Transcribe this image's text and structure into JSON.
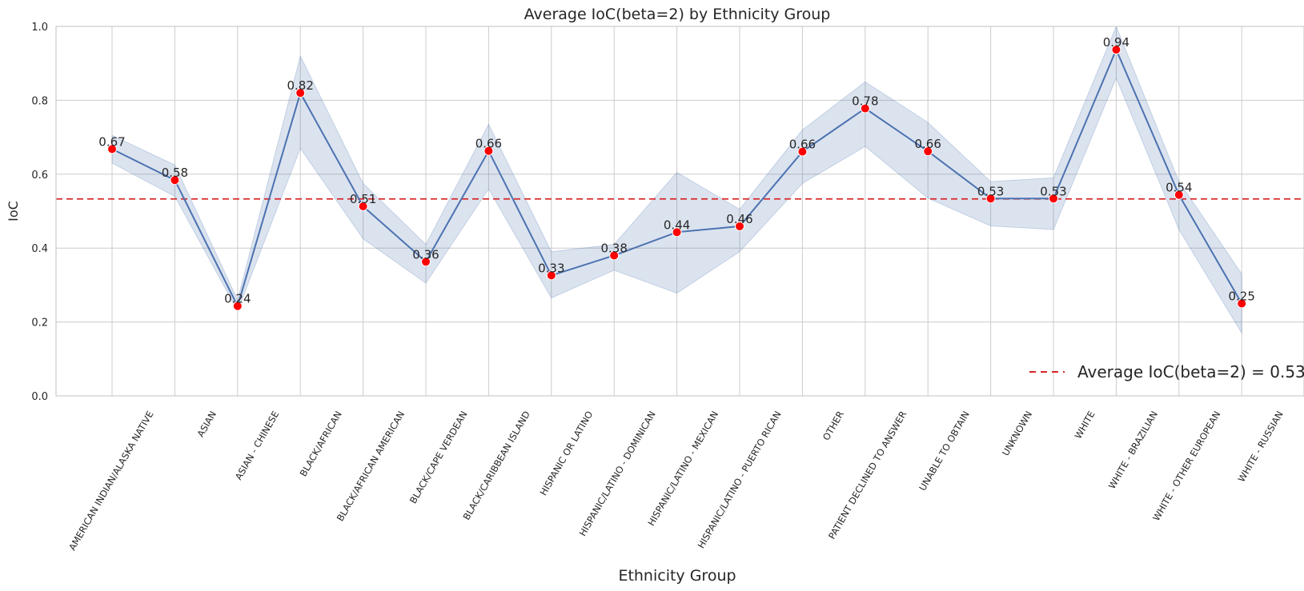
{
  "chart_data": {
    "type": "line",
    "title": "Average IoC(beta=2) by Ethnicity Group",
    "xlabel": "Ethnicity Group",
    "ylabel": "IoC",
    "ylim": [
      0,
      1
    ],
    "yticks": [
      0.0,
      0.2,
      0.4,
      0.6,
      0.8,
      1.0
    ],
    "ytick_labels": [
      "0.0",
      "0.2",
      "0.4",
      "0.6",
      "0.8",
      "1.0"
    ],
    "grid": true,
    "categories": [
      "AMERICAN INDIAN/ALASKA NATIVE",
      "ASIAN",
      "ASIAN - CHINESE",
      "BLACK/AFRICAN",
      "BLACK/AFRICAN AMERICAN",
      "BLACK/CAPE VERDEAN",
      "BLACK/CARIBBEAN ISLAND",
      "HISPANIC OR LATINO",
      "HISPANIC/LATINO - DOMINICAN",
      "HISPANIC/LATINO - MEXICAN",
      "HISPANIC/LATINO - PUERTO RICAN",
      "OTHER",
      "PATIENT DECLINED TO ANSWER",
      "UNABLE TO OBTAIN",
      "UNKNOWN",
      "WHITE",
      "WHITE - BRAZILIAN",
      "WHITE - OTHER EUROPEAN",
      "WHITE - RUSSIAN"
    ],
    "values": [
      0.668,
      0.584,
      0.243,
      0.82,
      0.513,
      0.363,
      0.663,
      0.326,
      0.38,
      0.443,
      0.459,
      0.661,
      0.778,
      0.662,
      0.534,
      0.534,
      0.937,
      0.544,
      0.25
    ],
    "value_labels": [
      "0.67",
      "0.58",
      "0.24",
      "0.82",
      "0.51",
      "0.36",
      "0.66",
      "0.33",
      "0.38",
      "0.44",
      "0.46",
      "0.66",
      "0.78",
      "0.66",
      "0.53",
      "0.53",
      "0.94",
      "0.54",
      "0.25"
    ],
    "ci_lower": [
      0.63,
      0.54,
      0.23,
      0.67,
      0.425,
      0.305,
      0.56,
      0.265,
      0.34,
      0.278,
      0.39,
      0.575,
      0.675,
      0.535,
      0.46,
      0.45,
      0.86,
      0.45,
      0.17
    ],
    "ci_upper": [
      0.705,
      0.625,
      0.26,
      0.92,
      0.575,
      0.41,
      0.735,
      0.39,
      0.41,
      0.605,
      0.505,
      0.72,
      0.85,
      0.74,
      0.58,
      0.59,
      1.0,
      0.58,
      0.33
    ],
    "average_line": {
      "value": 0.533,
      "legend_label": "Average IoC(beta=2) = 0.53"
    },
    "legend_position": "bottom-right",
    "colors": {
      "line": "#4c72b0",
      "band": "#4c72b0",
      "marker": "#ff0000",
      "average": "#d62728",
      "grid": "#cccccc"
    }
  }
}
